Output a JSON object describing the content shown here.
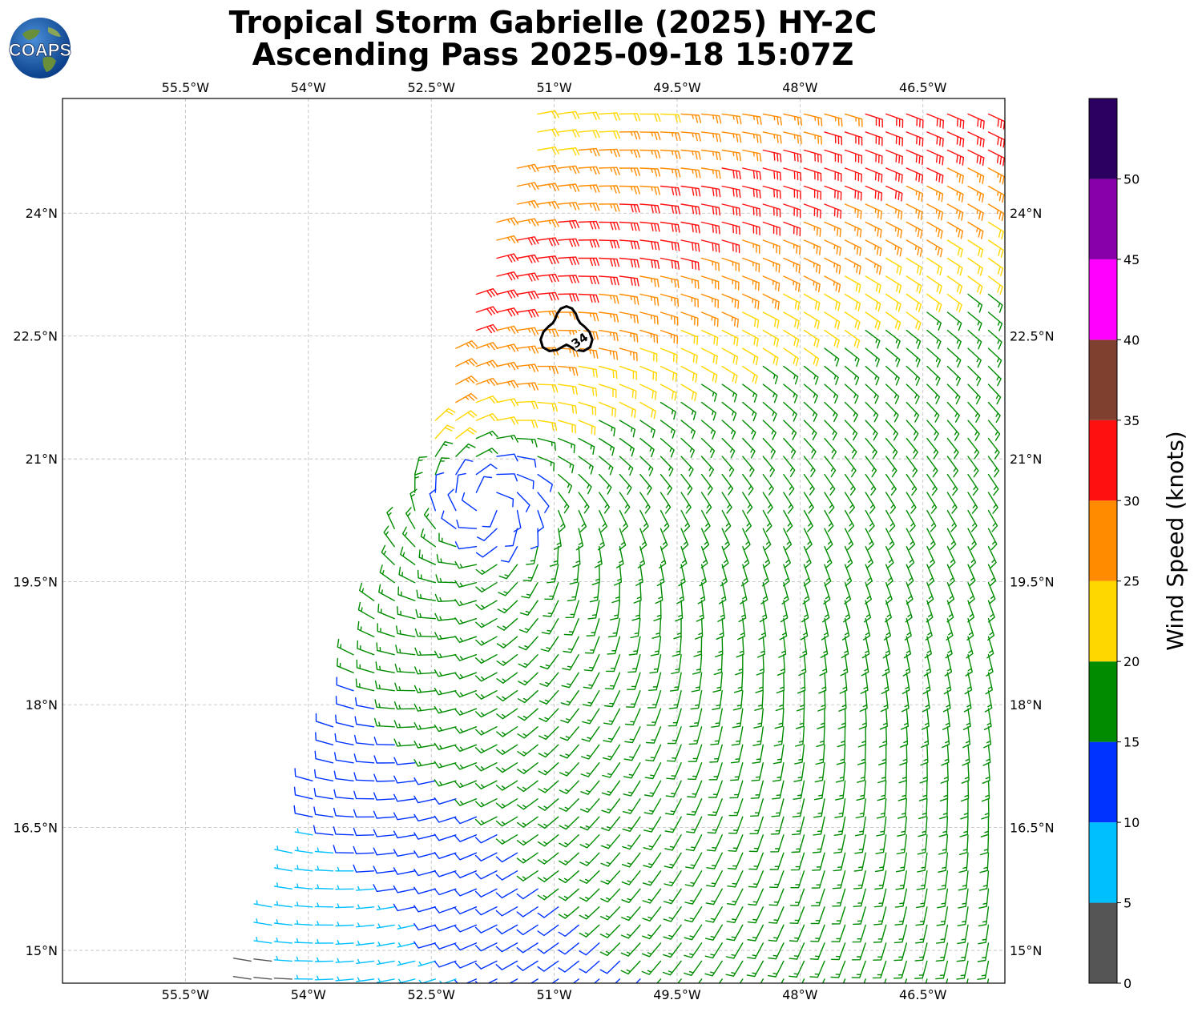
{
  "header": {
    "title_line1": "Tropical Storm Gabrielle (2025) HY-2C",
    "title_line2": "Ascending Pass 2025-09-18 15:07Z",
    "logo_text": "COAPS"
  },
  "chart_data": {
    "type": "wind-barb map",
    "title": "Tropical Storm Gabrielle (2025) HY-2C Ascending Pass 2025-09-18 15:07Z",
    "lon_range": [
      -57.0,
      -45.5
    ],
    "lat_range": [
      14.6,
      25.4
    ],
    "x_ticks": [
      {
        "value": -55.5,
        "label": "55.5°W"
      },
      {
        "value": -54.0,
        "label": "54°W"
      },
      {
        "value": -52.5,
        "label": "52.5°W"
      },
      {
        "value": -51.0,
        "label": "51°W"
      },
      {
        "value": -49.5,
        "label": "49.5°W"
      },
      {
        "value": -48.0,
        "label": "48°W"
      },
      {
        "value": -46.5,
        "label": "46.5°W"
      }
    ],
    "y_ticks": [
      {
        "value": 15.0,
        "label": "15°N"
      },
      {
        "value": 16.5,
        "label": "16.5°N"
      },
      {
        "value": 18.0,
        "label": "18°N"
      },
      {
        "value": 19.5,
        "label": "19.5°N"
      },
      {
        "value": 21.0,
        "label": "21°N"
      },
      {
        "value": 22.5,
        "label": "22.5°N"
      },
      {
        "value": 24.0,
        "label": "24°N"
      }
    ],
    "grid": true,
    "storm_center": {
      "lon": -51.8,
      "lat": 20.5
    },
    "contour": {
      "label": "34",
      "level_kt": 34,
      "center": {
        "lon": -50.85,
        "lat": 22.55
      }
    },
    "colorbar": {
      "label": "Wind Speed (knots)",
      "tick_labels": [
        "0",
        "5",
        "10",
        "15",
        "20",
        "25",
        "30",
        "35",
        "40",
        "45",
        "50"
      ],
      "bins": [
        {
          "min": 0,
          "max": 5,
          "color": "#555555"
        },
        {
          "min": 5,
          "max": 10,
          "color": "#00bfff"
        },
        {
          "min": 10,
          "max": 15,
          "color": "#0033ff"
        },
        {
          "min": 15,
          "max": 20,
          "color": "#008c00"
        },
        {
          "min": 20,
          "max": 25,
          "color": "#ffd700"
        },
        {
          "min": 25,
          "max": 30,
          "color": "#ff8c00"
        },
        {
          "min": 30,
          "max": 35,
          "color": "#ff1010"
        },
        {
          "min": 35,
          "max": 40,
          "color": "#804030"
        },
        {
          "min": 40,
          "max": 45,
          "color": "#ff00ff"
        },
        {
          "min": 45,
          "max": 50,
          "color": "#8800aa"
        },
        {
          "min": 50,
          "max": 55,
          "color": "#2a0060"
        }
      ]
    }
  }
}
